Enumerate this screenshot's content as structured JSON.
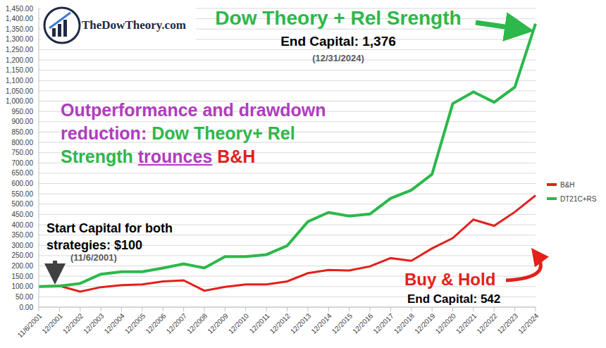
{
  "chart_data": {
    "type": "line",
    "categories": [
      "11/6/2001",
      "12/2001",
      "12/2002",
      "12/2003",
      "12/2004",
      "12/2005",
      "12/2006",
      "12/2007",
      "12/2008",
      "12/2009",
      "12/2010",
      "12/2011",
      "12/2012",
      "12/2013",
      "12/2014",
      "12/2015",
      "12/2016",
      "12/2017",
      "12/2018",
      "12/2019",
      "12/2020",
      "12/2021",
      "12/2022",
      "12/2023",
      "12/2024"
    ],
    "series": [
      {
        "name": "B&H",
        "color": "#e3201b",
        "values": [
          100,
          103,
          75,
          97,
          107,
          110,
          125,
          130,
          80,
          98,
          110,
          110,
          125,
          165,
          180,
          178,
          198,
          238,
          225,
          285,
          335,
          425,
          395,
          462,
          542
        ]
      },
      {
        "name": "DT21C+RS",
        "color": "#2cb84a",
        "values": [
          100,
          103,
          115,
          160,
          172,
          172,
          190,
          210,
          190,
          245,
          245,
          255,
          298,
          415,
          460,
          442,
          452,
          528,
          568,
          645,
          988,
          1045,
          995,
          1068,
          1376
        ]
      }
    ],
    "ylim": [
      0,
      1450
    ],
    "yticks": [
      {
        "value": 0,
        "label": "0.00"
      },
      {
        "value": 50,
        "label": "50.00"
      },
      {
        "value": 100,
        "label": "100.00"
      },
      {
        "value": 150,
        "label": "150.00"
      },
      {
        "value": 200,
        "label": "200.00"
      },
      {
        "value": 250,
        "label": "250.00"
      },
      {
        "value": 300,
        "label": "300.00"
      },
      {
        "value": 350,
        "label": "350.00"
      },
      {
        "value": 400,
        "label": "400.00"
      },
      {
        "value": 450,
        "label": "450.00"
      },
      {
        "value": 500,
        "label": "500.00"
      },
      {
        "value": 550,
        "label": "550.00"
      },
      {
        "value": 600,
        "label": "600.00"
      },
      {
        "value": 650,
        "label": "650.00"
      },
      {
        "value": 700,
        "label": "700.00"
      },
      {
        "value": 750,
        "label": "750.00"
      },
      {
        "value": 800,
        "label": "800.00"
      },
      {
        "value": 850,
        "label": "850.00"
      },
      {
        "value": 900,
        "label": "900.00"
      },
      {
        "value": 950,
        "label": "950.00"
      },
      {
        "value": 1000,
        "label": "1,000.00"
      },
      {
        "value": 1050,
        "label": "1,050.00"
      },
      {
        "value": 1100,
        "label": "1,100.00"
      },
      {
        "value": 1150,
        "label": "1,150.00"
      },
      {
        "value": 1200,
        "label": "1,200.00"
      },
      {
        "value": 1250,
        "label": "1,250.00"
      },
      {
        "value": 1300,
        "label": "1,300.00"
      },
      {
        "value": 1350,
        "label": "1,350.00"
      },
      {
        "value": 1400,
        "label": "1,400.00"
      },
      {
        "value": 1450,
        "label": "1,450.00"
      }
    ],
    "grid": true,
    "legend": "right",
    "annotations": [
      {
        "text": "Dow Theory + Rel Srength",
        "color": "#2cb84a"
      },
      {
        "text": "End Capital: 1,376",
        "color": "#000000"
      },
      {
        "text": "(12/31/2024)",
        "color": "#595959"
      },
      {
        "parts": [
          {
            "text": "Outperformance and drawdown reduction: ",
            "color": "#b03cc0"
          },
          {
            "text": "Dow Theory+ Rel Strength ",
            "color": "#2cb84a"
          },
          {
            "text": "trounces",
            "color": "#b03cc0"
          },
          {
            "text": " B&H",
            "color": "#e3201b"
          }
        ]
      },
      {
        "text": "Start Capital for both strategies: $100",
        "color": "#000000"
      },
      {
        "text": "(11/6/2001)",
        "color": "#595959"
      },
      {
        "text": "Buy & Hold",
        "color": "#e3201b"
      },
      {
        "text": "End Capital: 542",
        "color": "#000000"
      },
      {
        "text": "TheDowTheory.com",
        "color": "#1f2a44"
      }
    ]
  }
}
